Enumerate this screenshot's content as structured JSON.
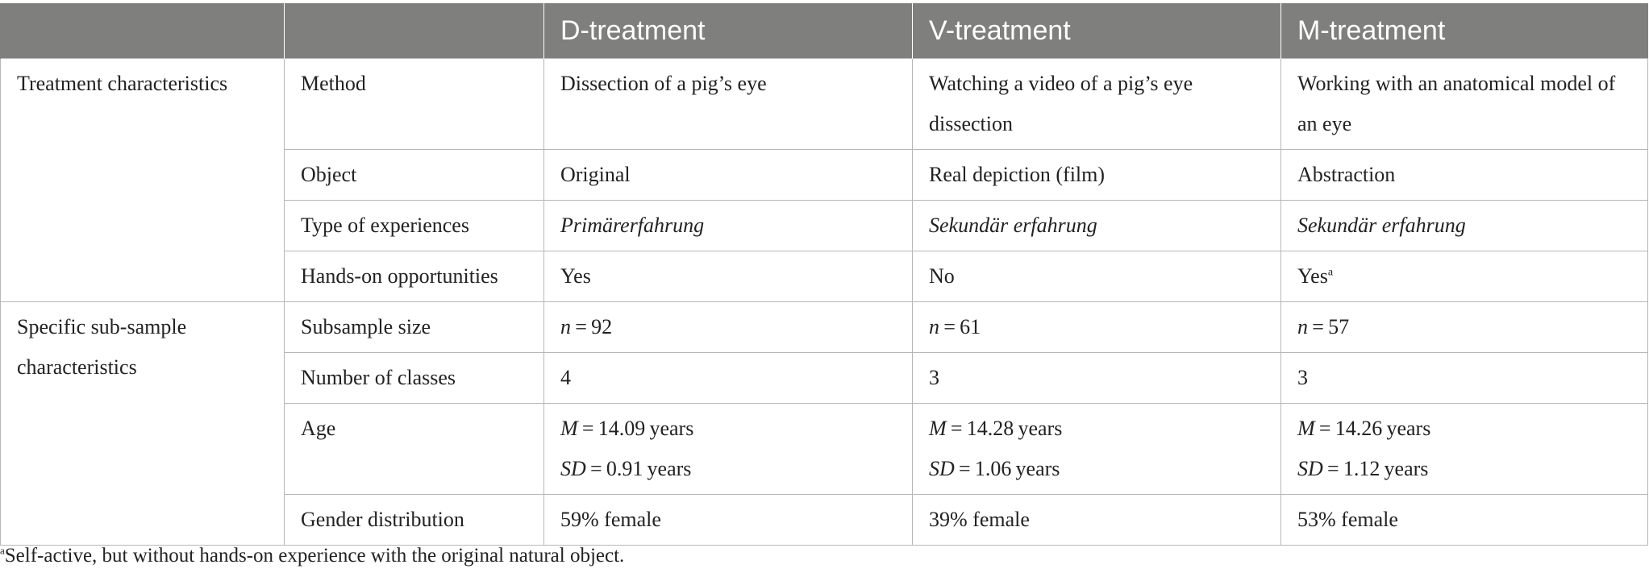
{
  "table": {
    "headers": [
      "",
      "",
      "D-treatment",
      "V-treatment",
      "M-treatment"
    ],
    "groups": {
      "treatment": "Treatment characteristics",
      "subsample": "Specific sub-sample characteristics"
    },
    "rows": {
      "method": {
        "label": "Method",
        "d": "Dissection of a pig’s eye",
        "v": "Watching a video of a pig’s eye dissection",
        "m": "Working with an anatomical model of an eye"
      },
      "object": {
        "label": "Object",
        "d": "Original",
        "v": "Real depiction (film)",
        "m": "Abstraction"
      },
      "experience": {
        "label": "Type of experiences",
        "d": "Primärerfahrung",
        "v": "Sekundär erfahrung",
        "m": "Sekundär erfahrung"
      },
      "handson": {
        "label": "Hands-on opportunities",
        "d": "Yes",
        "v": "No",
        "m": "Yes",
        "m_note": "a"
      },
      "size": {
        "label": "Subsample size",
        "n_symbol": "n",
        "d": " = 92",
        "v": " = 61",
        "m": " = 57"
      },
      "classes": {
        "label": "Number of classes",
        "d": "4",
        "v": "3",
        "m": "3"
      },
      "age": {
        "label": "Age",
        "m_symbol": "M",
        "sd_symbol": "SD",
        "d_m": " = 14.09 years",
        "d_sd": " = 0.91 years",
        "v_m": " = 14.28 years",
        "v_sd": " = 1.06 years",
        "m_m": " = 14.26 years",
        "m_sd": " = 1.12 years"
      },
      "gender": {
        "label": "Gender distribution",
        "d": "59% female",
        "v": "39% female",
        "m": "53% female"
      }
    }
  },
  "footnote": {
    "marker": "a",
    "text": "Self-active, but without hands-on experience with the original natural object."
  }
}
